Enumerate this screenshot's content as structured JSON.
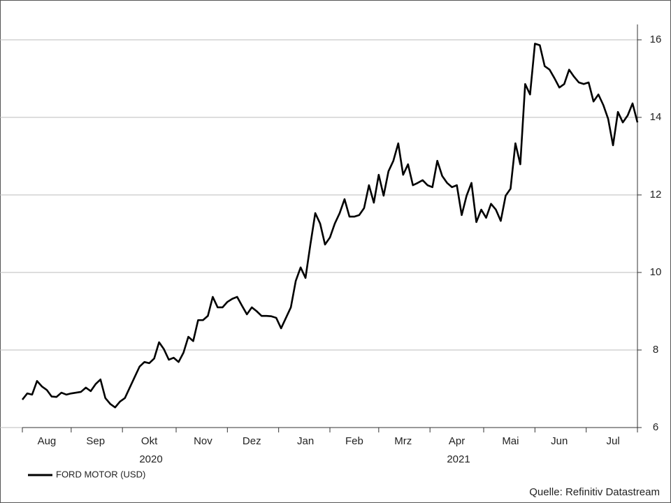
{
  "chart_data": {
    "type": "line",
    "categories": [
      null,
      null,
      null,
      null,
      null,
      "Aug",
      null,
      null,
      null,
      null,
      null,
      null,
      null,
      null,
      null,
      "Sep",
      null,
      null,
      null,
      null,
      null,
      null,
      null,
      null,
      null,
      null,
      "Okt",
      null,
      null,
      null,
      null,
      null,
      null,
      null,
      null,
      null,
      null,
      "Nov",
      null,
      null,
      null,
      null,
      null,
      null,
      null,
      null,
      null,
      "Dez",
      null,
      null,
      null,
      null,
      null,
      null,
      null,
      null,
      null,
      null,
      "Jan",
      null,
      null,
      null,
      null,
      null,
      null,
      null,
      null,
      null,
      "Feb",
      null,
      null,
      null,
      null,
      null,
      null,
      null,
      null,
      null,
      "Mrz",
      null,
      null,
      null,
      null,
      null,
      null,
      null,
      null,
      null,
      null,
      "Apr",
      null,
      null,
      null,
      null,
      null,
      null,
      null,
      null,
      null,
      null,
      "Mai",
      null,
      null,
      null,
      null,
      null,
      null,
      null,
      null,
      null,
      "Jun",
      null,
      null,
      null,
      null,
      null,
      null,
      null,
      null,
      null,
      null,
      "Jul",
      null,
      null,
      null,
      null,
      null
    ],
    "year_labels": [
      "2020",
      "2021"
    ],
    "series": [
      {
        "name": "FORD MOTOR (USD)",
        "color": "#000000",
        "values": [
          6.72,
          6.88,
          6.85,
          7.2,
          7.06,
          6.97,
          6.8,
          6.79,
          6.9,
          6.85,
          6.88,
          6.9,
          6.92,
          7.03,
          6.94,
          7.12,
          7.24,
          6.76,
          6.61,
          6.52,
          6.67,
          6.76,
          7.03,
          7.3,
          7.57,
          7.69,
          7.66,
          7.78,
          8.2,
          8.02,
          7.75,
          7.8,
          7.69,
          7.93,
          8.34,
          8.23,
          8.77,
          8.77,
          8.88,
          9.37,
          9.1,
          9.1,
          9.24,
          9.32,
          9.37,
          9.14,
          8.92,
          9.1,
          9.0,
          8.88,
          8.88,
          8.87,
          8.83,
          8.56,
          8.83,
          9.1,
          9.78,
          10.13,
          9.86,
          10.72,
          11.53,
          11.26,
          10.72,
          10.9,
          11.26,
          11.53,
          11.89,
          11.44,
          11.44,
          11.48,
          11.66,
          12.25,
          11.8,
          12.52,
          11.98,
          12.61,
          12.88,
          13.33,
          12.52,
          12.79,
          12.25,
          12.31,
          12.38,
          12.25,
          12.2,
          12.88,
          12.49,
          12.31,
          12.2,
          12.25,
          11.48,
          11.98,
          12.31,
          11.3,
          11.62,
          11.41,
          11.77,
          11.62,
          11.33,
          11.98,
          12.16,
          13.33,
          12.79,
          14.86,
          14.59,
          15.9,
          15.86,
          15.32,
          15.23,
          15.01,
          14.77,
          14.86,
          15.23,
          15.05,
          14.9,
          14.86,
          14.9,
          14.41,
          14.59,
          14.32,
          13.96,
          13.28,
          14.14,
          13.87,
          14.05,
          14.36,
          13.87
        ]
      }
    ],
    "ylim": [
      6,
      16
    ],
    "yticks": [
      6,
      8,
      10,
      12,
      14,
      16
    ],
    "grid": true,
    "source": "Quelle: Refinitiv Datastream"
  }
}
